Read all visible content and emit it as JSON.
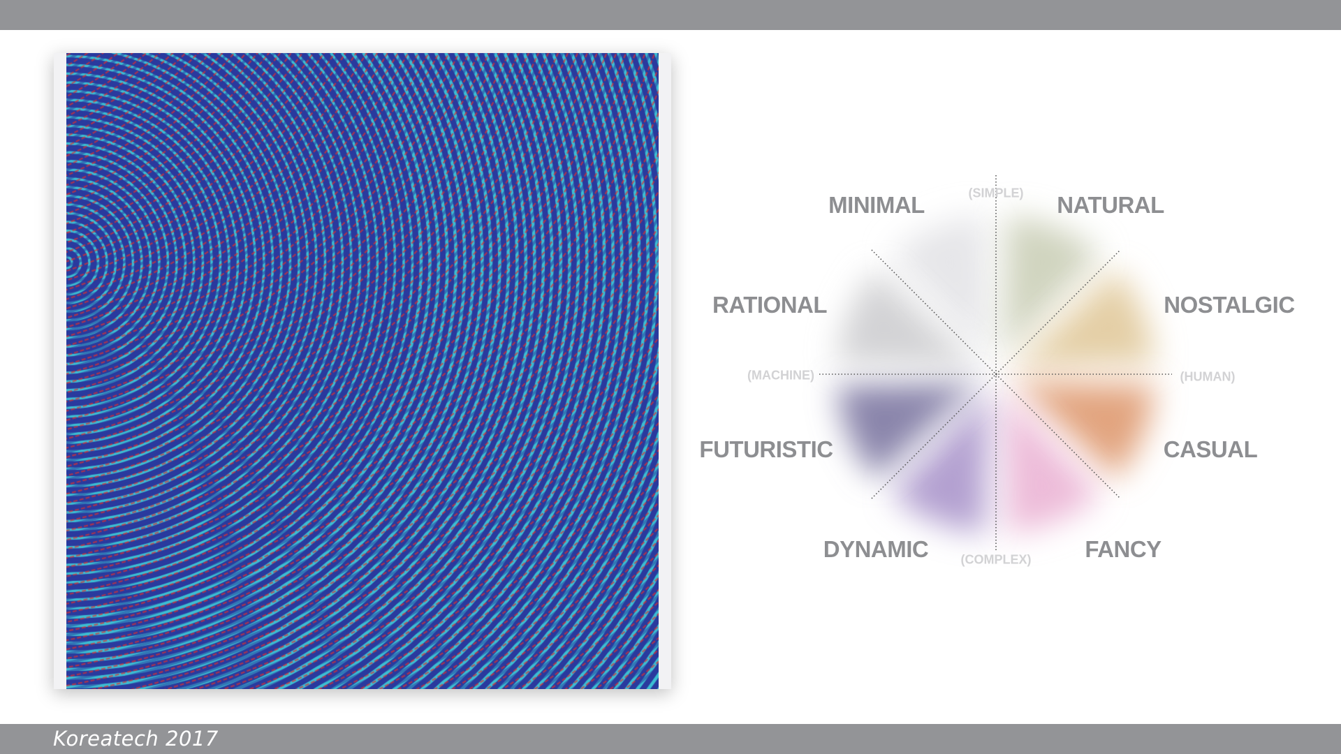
{
  "footer": {
    "text": "Koreatech 2017"
  },
  "wheel": {
    "axes": {
      "top": "(SIMPLE)",
      "bottom": "(COMPLEX)",
      "left": "(MACHINE)",
      "right": "(HUMAN)"
    },
    "sectors": [
      {
        "label": "MINIMAL",
        "color": "#e6e6e9"
      },
      {
        "label": "NATURAL",
        "color": "#d0d4bf"
      },
      {
        "label": "NOSTALGIC",
        "color": "#e4cfa6"
      },
      {
        "label": "CASUAL",
        "color": "#e2a47f"
      },
      {
        "label": "FANCY",
        "color": "#edbcd9"
      },
      {
        "label": "DYNAMIC",
        "color": "#b3a0d0"
      },
      {
        "label": "FUTURISTIC",
        "color": "#8a85ab"
      },
      {
        "label": "RATIONAL",
        "color": "#d3d3d5"
      }
    ]
  },
  "colors": {
    "bar": "#939497",
    "pattern_bg": "#2a3a9e",
    "pattern_cyan": "#3fd6dc",
    "pattern_red": "#e0302e",
    "label": "#8d8e91"
  }
}
